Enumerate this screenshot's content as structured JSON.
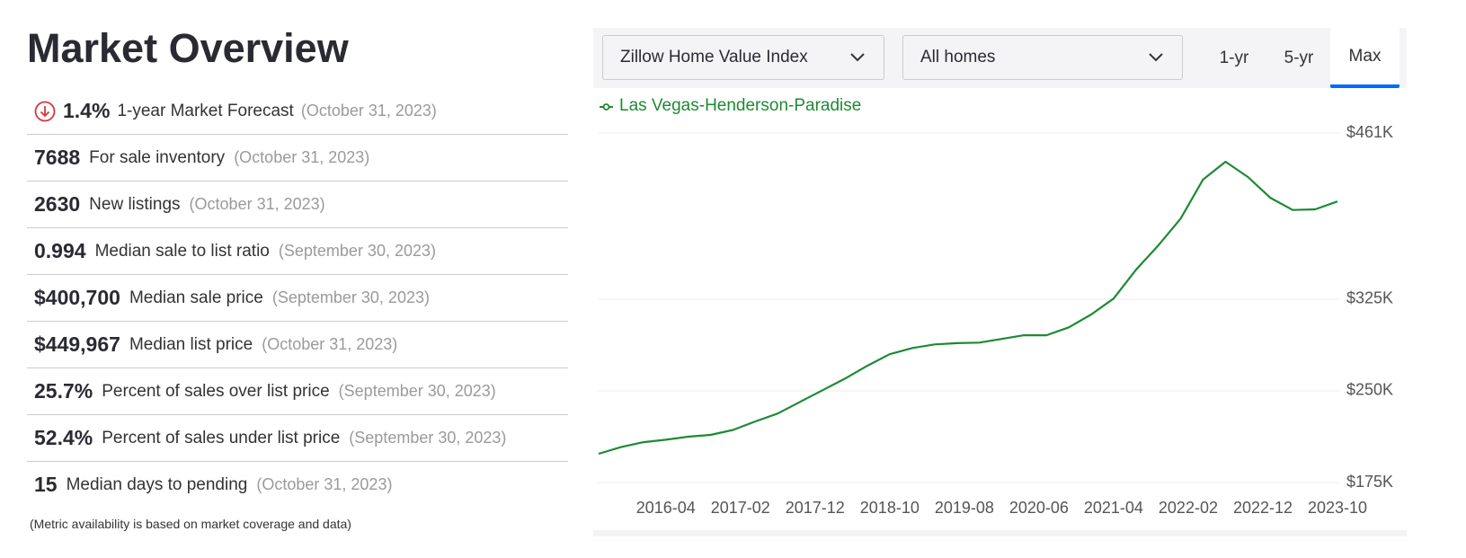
{
  "title": "Market Overview",
  "metrics": [
    {
      "value": "1.4%",
      "label": "1-year Market Forecast",
      "date": "(October 31, 2023)"
    },
    {
      "value": "7688",
      "label": "For sale inventory",
      "date": "(October 31, 2023)"
    },
    {
      "value": "2630",
      "label": "New listings",
      "date": "(October 31, 2023)"
    },
    {
      "value": "0.994",
      "label": "Median sale to list ratio",
      "date": "(September 30, 2023)"
    },
    {
      "value": "$400,700",
      "label": "Median sale price",
      "date": "(September 30, 2023)"
    },
    {
      "value": "$449,967",
      "label": "Median list price",
      "date": "(October 31, 2023)"
    },
    {
      "value": "25.7%",
      "label": "Percent of sales over list price",
      "date": "(September 30, 2023)"
    },
    {
      "value": "52.4%",
      "label": "Percent of sales under list price",
      "date": "(September 30, 2023)"
    },
    {
      "value": "15",
      "label": "Median days to pending",
      "date": "(October 31, 2023)"
    }
  ],
  "footnote": "(Metric availability is based on market coverage and data)",
  "controls": {
    "dropdowns": [
      "Zillow Home Value Index",
      "All homes"
    ],
    "tabs": [
      "1-yr",
      "5-yr",
      "Max"
    ],
    "selected_tab": 2
  },
  "chart_data": {
    "type": "line",
    "x": [
      "2015-07",
      "2015-10",
      "2016-01",
      "2016-04",
      "2016-07",
      "2016-10",
      "2017-01",
      "2017-04",
      "2017-07",
      "2017-10",
      "2018-01",
      "2018-04",
      "2018-07",
      "2018-10",
      "2019-01",
      "2019-04",
      "2019-07",
      "2019-10",
      "2020-01",
      "2020-04",
      "2020-07",
      "2020-10",
      "2021-01",
      "2021-04",
      "2021-07",
      "2021-10",
      "2022-01",
      "2022-04",
      "2022-07",
      "2022-10",
      "2023-01",
      "2023-04",
      "2023-07",
      "2023-10"
    ],
    "series": [
      {
        "name": "Las Vegas-Henderson-Paradise",
        "color": "#1e8a34",
        "values": [
          198500,
          204000,
          208000,
          210000,
          212500,
          214000,
          218000,
          225000,
          231500,
          241000,
          250500,
          260000,
          270500,
          280000,
          285000,
          288000,
          289000,
          289500,
          292500,
          295500,
          295500,
          302000,
          312500,
          325500,
          349000,
          369000,
          391000,
          423000,
          437500,
          425000,
          408000,
          398000,
          398500,
          405000
        ]
      }
    ],
    "xlim": [
      "2015-07",
      "2023-10"
    ],
    "xticks": [
      "2016-04",
      "2017-02",
      "2017-12",
      "2018-10",
      "2019-08",
      "2020-06",
      "2021-04",
      "2022-02",
      "2022-12",
      "2023-10"
    ],
    "ylim": [
      175000,
      461000
    ],
    "yticks": [
      {
        "value": 175000,
        "label": "$175K"
      },
      {
        "value": 250000,
        "label": "$250K"
      },
      {
        "value": 325000,
        "label": "$325K"
      },
      {
        "value": 461000,
        "label": "$461K"
      }
    ],
    "grid": true
  }
}
